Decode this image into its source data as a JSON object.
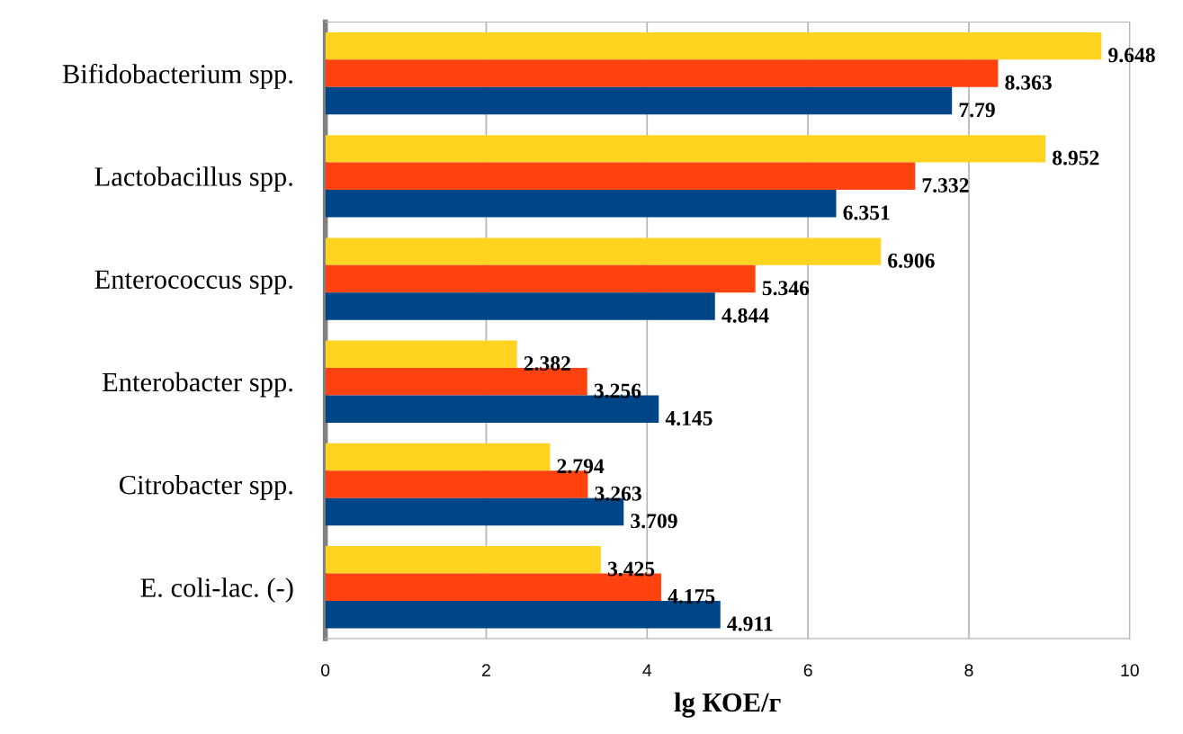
{
  "chart_data": {
    "type": "bar",
    "orientation": "horizontal",
    "xlabel": "lg КОЕ/г",
    "categories": [
      "Bifidobacterium spp.",
      "Lactobacillus spp.",
      "Enterococcus spp.",
      "Enterobacter spp.",
      "Citrobacter spp.",
      "E. coli-lac. (-)"
    ],
    "series": [
      {
        "color": "#ffd320",
        "values": [
          9.648,
          8.952,
          6.906,
          2.382,
          2.794,
          3.425
        ]
      },
      {
        "color": "#ff420e",
        "values": [
          8.363,
          7.332,
          5.346,
          3.256,
          3.263,
          4.175
        ]
      },
      {
        "color": "#004586",
        "values": [
          7.79,
          6.351,
          4.844,
          4.145,
          3.709,
          4.911
        ]
      }
    ],
    "xlim": [
      0,
      10
    ],
    "xticks": [
      0,
      2,
      4,
      6,
      8,
      10
    ],
    "grid": "x",
    "data_labels": true
  }
}
